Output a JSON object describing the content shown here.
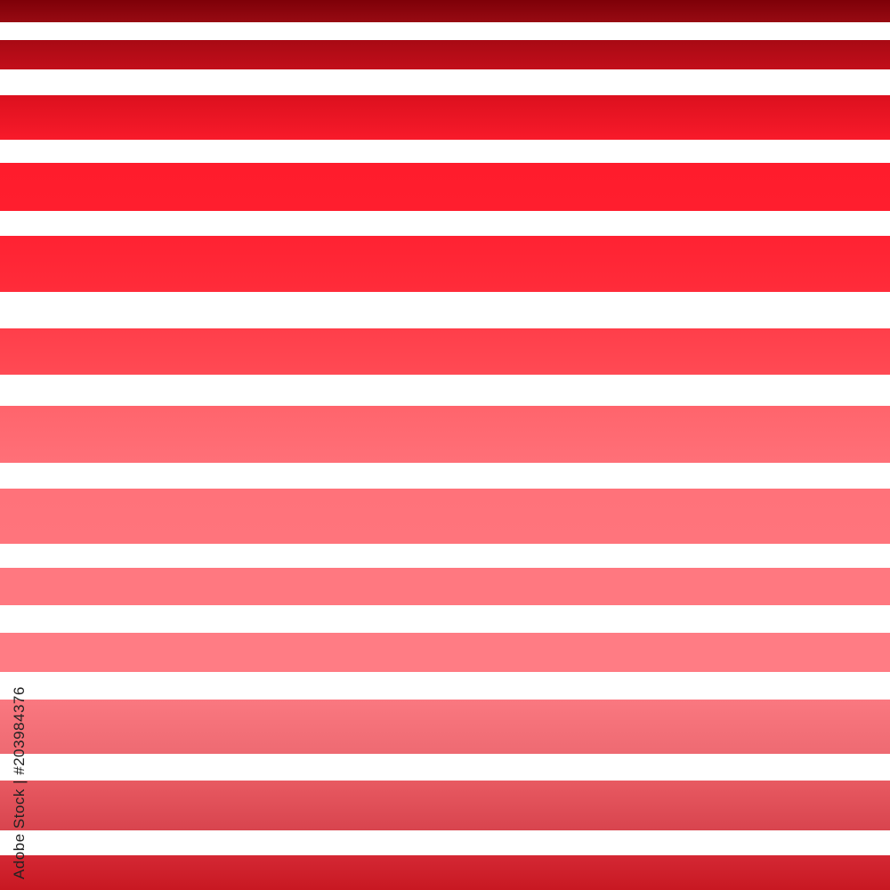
{
  "stripes": [
    {
      "top": "#7e0008",
      "bottom": "#980a12"
    },
    {
      "top": "#a80a14",
      "bottom": "#c20e1a"
    },
    {
      "top": "#dc101e",
      "bottom": "#f81a2a"
    },
    {
      "top": "#ff1c2c",
      "bottom": "#ff1e2e"
    },
    {
      "top": "#ff2232",
      "bottom": "#ff2c3a"
    },
    {
      "top": "#ff3e4a",
      "bottom": "#ff4a54"
    },
    {
      "top": "#ff646c",
      "bottom": "#ff7078"
    },
    {
      "top": "#ff727a",
      "bottom": "#ff747c"
    },
    {
      "top": "#ff7880",
      "bottom": "#ff7880"
    },
    {
      "top": "#ff7c84",
      "bottom": "#ff7c84"
    },
    {
      "top": "#fa7880",
      "bottom": "#ee6a72"
    },
    {
      "top": "#e85a62",
      "bottom": "#d8444e"
    },
    {
      "top": "#d42834",
      "bottom": "#c81822"
    }
  ],
  "watermark": "Adobe Stock",
  "credit": "Adobe Stock | #203984376"
}
